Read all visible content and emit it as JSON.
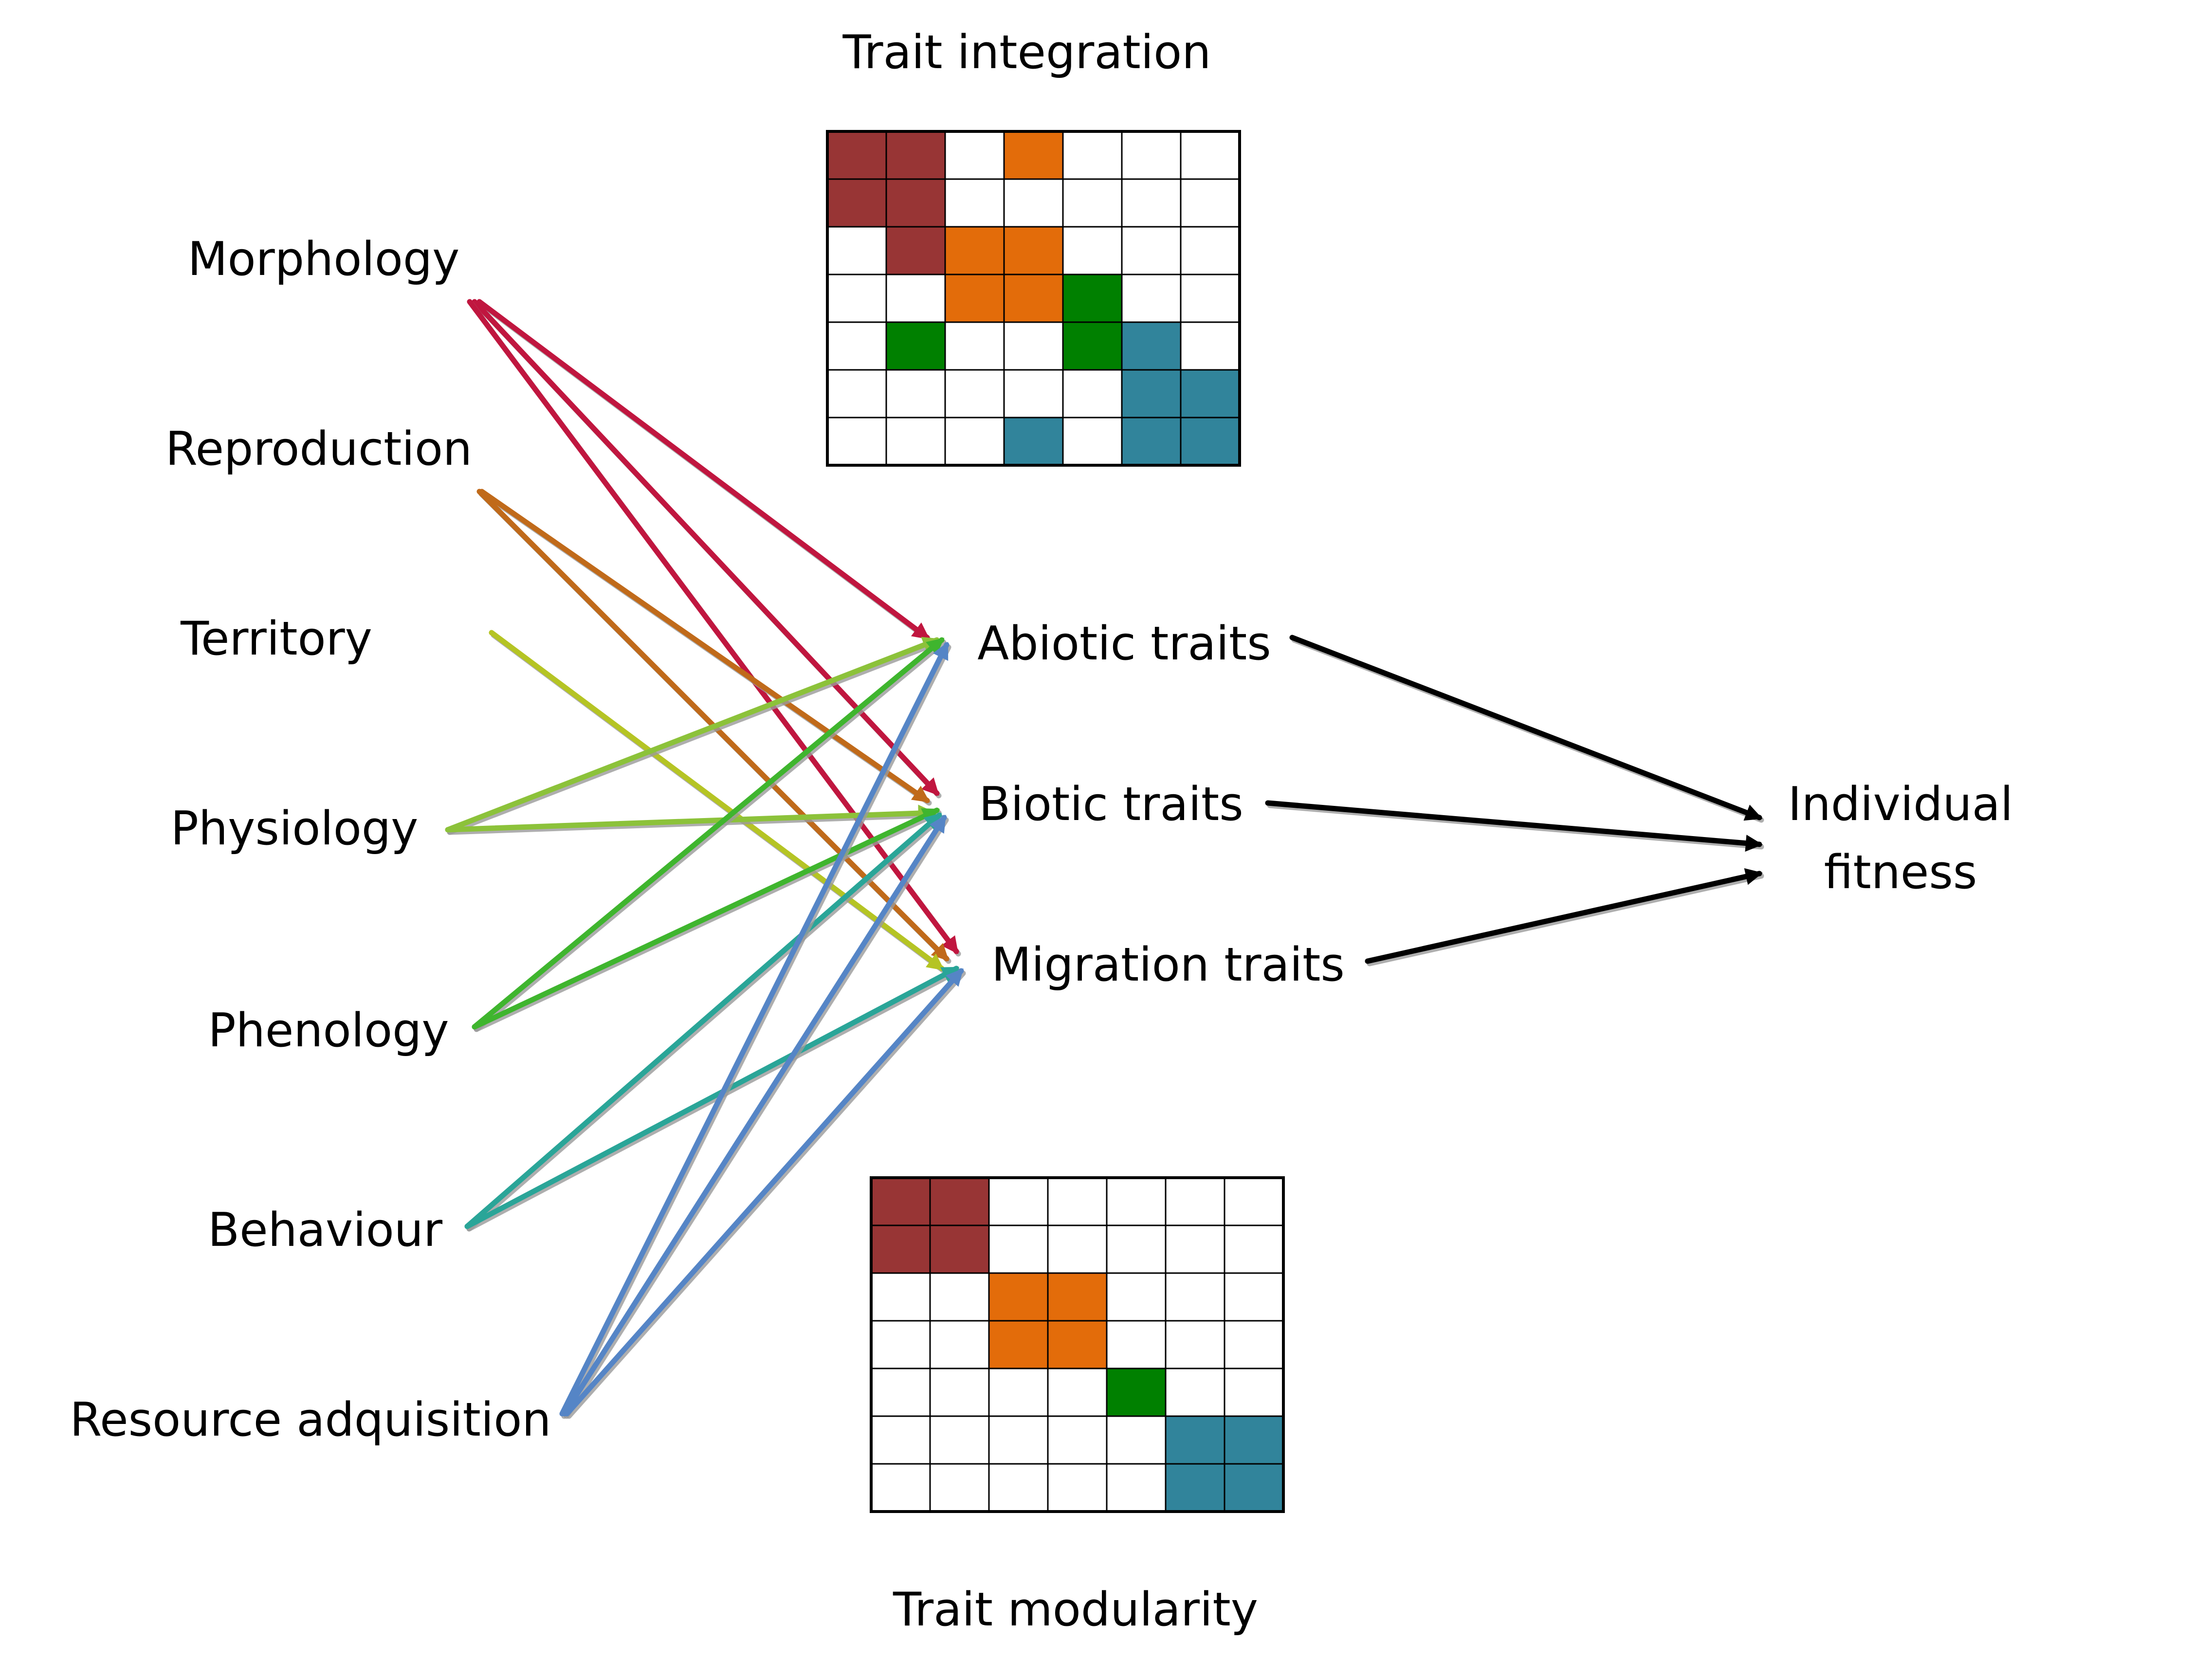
{
  "titles": {
    "integration": "Trait integration",
    "modularity": "Trait modularity"
  },
  "sources": [
    {
      "key": "morphology",
      "label": "Morphology",
      "color": "#c0163f",
      "targets": [
        "abiotic",
        "biotic",
        "migration"
      ]
    },
    {
      "key": "reproduction",
      "label": "Reproduction",
      "color": "#c06a1a",
      "targets": [
        "biotic",
        "migration"
      ]
    },
    {
      "key": "territory",
      "label": "Territory",
      "color": "#b5c424",
      "targets": [
        "migration"
      ]
    },
    {
      "key": "physiology",
      "label": "Physiology",
      "color": "#8cc23a",
      "targets": [
        "abiotic",
        "biotic"
      ]
    },
    {
      "key": "phenology",
      "label": "Phenology",
      "color": "#3fb52e",
      "targets": [
        "abiotic",
        "biotic"
      ]
    },
    {
      "key": "behaviour",
      "label": "Behaviour",
      "color": "#2aa598",
      "targets": [
        "biotic",
        "migration"
      ]
    },
    {
      "key": "resource",
      "label": "Resource adquisition",
      "color": "#5585c6",
      "targets": [
        "abiotic",
        "biotic",
        "migration"
      ]
    }
  ],
  "middles": [
    {
      "key": "abiotic",
      "label": "Abiotic traits"
    },
    {
      "key": "biotic",
      "label": "Biotic traits"
    },
    {
      "key": "migration",
      "label": "Migration traits"
    }
  ],
  "outcome": {
    "line1": "Individual",
    "line2": "fitness"
  },
  "colors": {
    "red": "#983535",
    "orange": "#e36c0a",
    "green": "#008000",
    "teal": "#31849b",
    "fitness_arrow": "#000000"
  },
  "integration_matrix": [
    [
      "red",
      "red",
      "",
      "orange",
      "",
      "",
      ""
    ],
    [
      "red",
      "red",
      "",
      "",
      "",
      "",
      ""
    ],
    [
      "",
      "red",
      "orange",
      "orange",
      "",
      "",
      ""
    ],
    [
      "",
      "",
      "orange",
      "orange",
      "green",
      "",
      ""
    ],
    [
      "",
      "green",
      "",
      "",
      "green",
      "teal",
      ""
    ],
    [
      "",
      "",
      "",
      "",
      "",
      "teal",
      "teal"
    ],
    [
      "",
      "",
      "",
      "teal",
      "",
      "teal",
      "teal"
    ]
  ],
  "modularity_matrix": [
    [
      "red",
      "red",
      "",
      "",
      "",
      "",
      ""
    ],
    [
      "red",
      "red",
      "",
      "",
      "",
      "",
      ""
    ],
    [
      "",
      "",
      "orange",
      "orange",
      "",
      "",
      ""
    ],
    [
      "",
      "",
      "orange",
      "orange",
      "",
      "",
      ""
    ],
    [
      "",
      "",
      "",
      "",
      "green",
      "",
      ""
    ],
    [
      "",
      "",
      "",
      "",
      "",
      "teal",
      "teal"
    ],
    [
      "",
      "",
      "",
      "",
      "",
      "teal",
      "teal"
    ]
  ]
}
